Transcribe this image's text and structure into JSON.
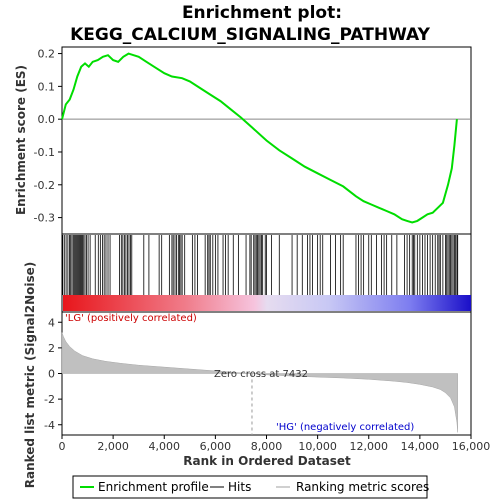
{
  "chart_data": {
    "type": "line",
    "title_line1": "Enrichment plot:",
    "title_line2": "KEGG_CALCIUM_SIGNALING_PATHWAY",
    "es_panel": {
      "ylabel": "Enrichment score (ES)",
      "ylim": [
        -0.35,
        0.22
      ],
      "yticks": [
        0.2,
        0.1,
        0.0,
        -0.1,
        -0.2,
        -0.3
      ],
      "ytick_labels": [
        "0.2",
        "0.1",
        "0.0",
        "-0.1",
        "-0.2",
        "-0.3"
      ],
      "series": [
        {
          "name": "Enrichment profile",
          "color": "#00dd00",
          "x": [
            0,
            150,
            300,
            450,
            600,
            750,
            900,
            1050,
            1200,
            1400,
            1600,
            1800,
            2000,
            2200,
            2400,
            2600,
            2800,
            3000,
            3300,
            3600,
            4000,
            4300,
            4700,
            5000,
            5400,
            5800,
            6200,
            6600,
            7000,
            7432,
            8000,
            8500,
            9000,
            9500,
            10000,
            10500,
            11000,
            11500,
            11800,
            12100,
            12400,
            12700,
            13000,
            13300,
            13500,
            13700,
            13900,
            14100,
            14300,
            14500,
            14700,
            14900,
            15100,
            15250,
            15350,
            15450
          ],
          "y": [
            0.0,
            0.045,
            0.06,
            0.09,
            0.13,
            0.16,
            0.17,
            0.16,
            0.175,
            0.18,
            0.19,
            0.195,
            0.18,
            0.175,
            0.19,
            0.2,
            0.195,
            0.19,
            0.175,
            0.16,
            0.14,
            0.13,
            0.125,
            0.115,
            0.095,
            0.075,
            0.055,
            0.03,
            0.005,
            -0.025,
            -0.065,
            -0.095,
            -0.12,
            -0.145,
            -0.165,
            -0.185,
            -0.205,
            -0.235,
            -0.25,
            -0.26,
            -0.27,
            -0.28,
            -0.29,
            -0.305,
            -0.31,
            -0.315,
            -0.31,
            -0.3,
            -0.29,
            -0.285,
            -0.27,
            -0.255,
            -0.2,
            -0.15,
            -0.08,
            0.0
          ]
        }
      ]
    },
    "hits": {
      "name": "Hits",
      "positions": [
        30,
        90,
        160,
        230,
        290,
        340,
        390,
        440,
        480,
        520,
        560,
        600,
        640,
        680,
        720,
        760,
        800,
        850,
        900,
        960,
        1020,
        1100,
        1300,
        1420,
        1500,
        1580,
        1650,
        1720,
        1800,
        1880,
        2250,
        2320,
        2380,
        2440,
        2500,
        2560,
        2620,
        2680,
        2730,
        3200,
        3400,
        3800,
        3900,
        4200,
        4300,
        4350,
        4420,
        4480,
        4550,
        4600,
        4650,
        4700,
        4800,
        5100,
        5200,
        5300,
        5600,
        5700,
        5750,
        5800,
        5900,
        6000,
        6100,
        6300,
        6400,
        6500,
        6700,
        6900,
        7200,
        7350,
        7400,
        7500,
        7550,
        7600,
        7650,
        7700,
        7750,
        7800,
        7850,
        7950,
        8000,
        8200,
        8500,
        9000,
        9200,
        9400,
        9600,
        9700,
        9800,
        10000,
        10100,
        10200,
        10500,
        10700,
        10900,
        11000,
        11500,
        11600,
        11700,
        11800,
        12000,
        12100,
        12300,
        12500,
        12600,
        12700,
        12900,
        13100,
        13400,
        13500,
        13600,
        13700,
        13750,
        13800,
        13900,
        14000,
        14100,
        14200,
        14300,
        14400,
        14500,
        14600,
        14700,
        14750,
        14800,
        14900,
        15000,
        15050,
        15100,
        15150,
        15200,
        15250,
        15300,
        15350,
        15400,
        15450,
        15480
      ]
    },
    "metric_panel": {
      "ylabel": "Ranked list metric (Signal2Noise)",
      "ylim": [
        -4.8,
        4.8
      ],
      "yticks": [
        4,
        2,
        0,
        -2,
        -4
      ],
      "ytick_labels": [
        "4",
        "2",
        "0",
        "-2",
        "-4"
      ],
      "series": [
        {
          "name": "Ranking metric scores",
          "color": "#c0c0c0",
          "x": [
            0,
            50,
            150,
            300,
            500,
            800,
            1200,
            1700,
            2300,
            3000,
            4000,
            5000,
            6000,
            7000,
            7432,
            8000,
            9000,
            10000,
            11000,
            12000,
            13000,
            13500,
            14000,
            14500,
            14800,
            15000,
            15200,
            15350,
            15450,
            15480
          ],
          "y": [
            3.2,
            2.9,
            2.5,
            2.1,
            1.75,
            1.4,
            1.15,
            0.95,
            0.8,
            0.65,
            0.5,
            0.35,
            0.2,
            0.05,
            0.0,
            -0.1,
            -0.2,
            -0.28,
            -0.35,
            -0.45,
            -0.6,
            -0.7,
            -0.85,
            -1.05,
            -1.25,
            -1.5,
            -1.9,
            -2.6,
            -3.8,
            -4.6
          ]
        }
      ],
      "zero_cross_label": "Zero cross at 7432",
      "zero_cross": 7432,
      "positive_label": "'LG' (positively correlated)",
      "negative_label": "'HG' (negatively correlated)"
    },
    "xaxis": {
      "label": "Rank in Ordered Dataset",
      "xlim": [
        0,
        16000
      ],
      "ticks": [
        0,
        2000,
        4000,
        6000,
        8000,
        10000,
        12000,
        14000,
        16000
      ],
      "tick_labels": [
        "0",
        "2,000",
        "4,000",
        "6,000",
        "8,000",
        "10,000",
        "12,000",
        "14,000",
        "16,000"
      ],
      "n_genes": 15480
    },
    "legend": {
      "placement": "bottom",
      "items": [
        {
          "label": "Enrichment profile",
          "color": "#00dd00"
        },
        {
          "label": "Hits",
          "color": "#000000"
        },
        {
          "label": "Ranking metric scores",
          "color": "#c0c0c0"
        }
      ]
    }
  }
}
